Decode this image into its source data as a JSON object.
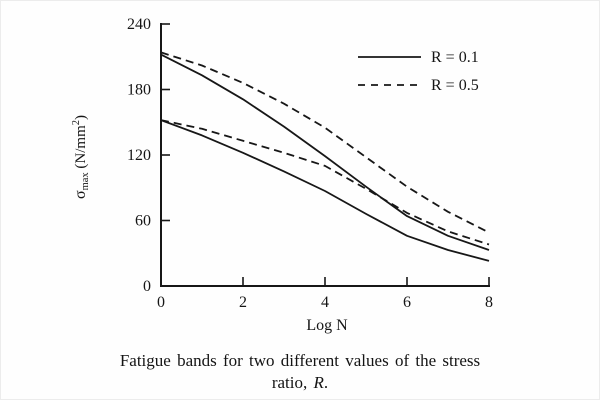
{
  "colors": {
    "background": "#fefefe",
    "line": "#171717",
    "text": "#141414"
  },
  "chart_data": {
    "type": "line",
    "title": "",
    "xlabel": "Log N",
    "ylabel": "σmax (N/mm²)",
    "ylabel_parts": {
      "sigma": "σ",
      "sub": "max",
      "mid": " (N/mm",
      "sup": "2",
      "end": ")"
    },
    "xlim": [
      0,
      8
    ],
    "ylim": [
      0,
      240
    ],
    "xticks": [
      0,
      2,
      4,
      6,
      8
    ],
    "yticks": [
      0,
      60,
      120,
      180,
      240
    ],
    "grid": false,
    "legend_position": "upper right",
    "x": [
      0,
      1,
      2,
      3,
      4,
      5,
      6,
      7,
      8
    ],
    "series": [
      {
        "name": "R = 0.1 upper bound",
        "style": "solid",
        "values": [
          212,
          193,
          171,
          146,
          119,
          91,
          64,
          46,
          33
        ]
      },
      {
        "name": "R = 0.5 upper bound",
        "style": "dashed",
        "values": [
          214,
          202,
          186,
          167,
          145,
          118,
          91,
          68,
          49
        ]
      },
      {
        "name": "R = 0.1 lower bound",
        "style": "solid",
        "values": [
          152,
          138,
          122,
          105,
          87,
          66,
          46,
          33,
          23
        ]
      },
      {
        "name": "R = 0.5 lower bound",
        "style": "dashed",
        "values": [
          152,
          144,
          133,
          122,
          110,
          89,
          67,
          50,
          38
        ]
      }
    ],
    "legend": [
      {
        "label": "R = 0.1",
        "style": "solid"
      },
      {
        "label": "R = 0.5",
        "style": "dashed"
      }
    ]
  },
  "caption": {
    "line1": "Fatigue bands for two different values of the stress",
    "line2_prefix": "ratio, ",
    "line2_italic": "R",
    "line2_suffix": "."
  }
}
